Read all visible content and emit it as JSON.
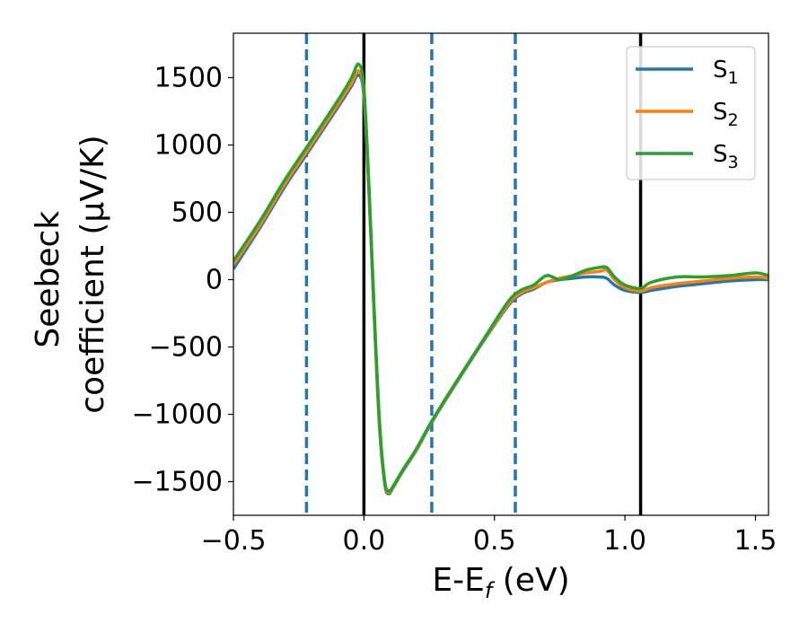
{
  "chart_data": {
    "type": "line",
    "title": "",
    "xlabel": "E-E_f (eV)",
    "xlabel_parts": {
      "main": "E-E",
      "sub": "f",
      "tail": " (eV)"
    },
    "ylabel_lines": [
      "Seebeck",
      "coefficient  (μV/K)"
    ],
    "xlim": [
      -0.5,
      1.55
    ],
    "ylim": [
      -1750,
      1830
    ],
    "xticks": [
      -0.5,
      0.0,
      0.5,
      1.0,
      1.5
    ],
    "xtick_labels": [
      "−0.5",
      "0.0",
      "0.5",
      "1.0",
      "1.5"
    ],
    "yticks": [
      -1500,
      -1000,
      -500,
      0,
      500,
      1000,
      1500
    ],
    "ytick_labels": [
      "−1500",
      "−1000",
      "−500",
      "0",
      "500",
      "1000",
      "1500"
    ],
    "grid": false,
    "legend_position": "top-right",
    "vlines_solid": [
      0.0,
      1.06
    ],
    "vlines_dashed": [
      -0.22,
      0.26,
      0.58
    ],
    "series": [
      {
        "name": "S₁",
        "name_main": "S",
        "name_sub": "1",
        "color": "#1f77b4",
        "x": [
          -0.5,
          -0.4,
          -0.3,
          -0.22,
          -0.1,
          -0.05,
          -0.02,
          0.0,
          0.02,
          0.04,
          0.06,
          0.08,
          0.095,
          0.11,
          0.15,
          0.2,
          0.26,
          0.35,
          0.45,
          0.55,
          0.6,
          0.65,
          0.7,
          0.75,
          0.8,
          0.85,
          0.9,
          0.93,
          0.96,
          1.0,
          1.06,
          1.1,
          1.2,
          1.3,
          1.4,
          1.5,
          1.55
        ],
        "y": [
          80,
          380,
          700,
          930,
          1280,
          1430,
          1520,
          1360,
          620,
          -300,
          -1100,
          -1520,
          -1590,
          -1550,
          -1420,
          -1270,
          -1060,
          -780,
          -480,
          -200,
          -110,
          -70,
          -20,
          0,
          10,
          20,
          20,
          10,
          -40,
          -80,
          -95,
          -80,
          -50,
          -30,
          -10,
          0,
          0
        ]
      },
      {
        "name": "S₂",
        "name_main": "S",
        "name_sub": "2",
        "color": "#ff7f0e",
        "x": [
          -0.5,
          -0.4,
          -0.3,
          -0.22,
          -0.1,
          -0.05,
          -0.02,
          0.0,
          0.02,
          0.04,
          0.06,
          0.08,
          0.095,
          0.11,
          0.15,
          0.2,
          0.26,
          0.35,
          0.45,
          0.55,
          0.6,
          0.65,
          0.7,
          0.75,
          0.8,
          0.85,
          0.9,
          0.93,
          0.96,
          1.0,
          1.06,
          1.1,
          1.2,
          1.3,
          1.4,
          1.5,
          1.55
        ],
        "y": [
          110,
          400,
          720,
          950,
          1300,
          1450,
          1550,
          1390,
          640,
          -280,
          -1080,
          -1510,
          -1580,
          -1545,
          -1415,
          -1265,
          -1055,
          -775,
          -475,
          -190,
          -100,
          -60,
          -20,
          10,
          30,
          50,
          60,
          70,
          0,
          -60,
          -85,
          -60,
          -30,
          -10,
          10,
          20,
          10
        ]
      },
      {
        "name": "S₃",
        "name_main": "S",
        "name_sub": "3",
        "color": "#2ca02c",
        "x": [
          -0.5,
          -0.4,
          -0.3,
          -0.22,
          -0.1,
          -0.05,
          -0.02,
          0.0,
          0.02,
          0.04,
          0.06,
          0.08,
          0.095,
          0.11,
          0.15,
          0.2,
          0.26,
          0.35,
          0.45,
          0.55,
          0.6,
          0.65,
          0.7,
          0.75,
          0.8,
          0.85,
          0.9,
          0.93,
          0.96,
          1.0,
          1.06,
          1.1,
          1.2,
          1.3,
          1.4,
          1.5,
          1.55
        ],
        "y": [
          140,
          430,
          750,
          980,
          1330,
          1490,
          1600,
          1420,
          660,
          -260,
          -1070,
          -1500,
          -1570,
          -1540,
          -1410,
          -1260,
          -1050,
          -770,
          -470,
          -170,
          -80,
          -40,
          30,
          0,
          30,
          70,
          90,
          90,
          20,
          -40,
          -65,
          -20,
          20,
          20,
          30,
          50,
          30
        ]
      }
    ]
  }
}
